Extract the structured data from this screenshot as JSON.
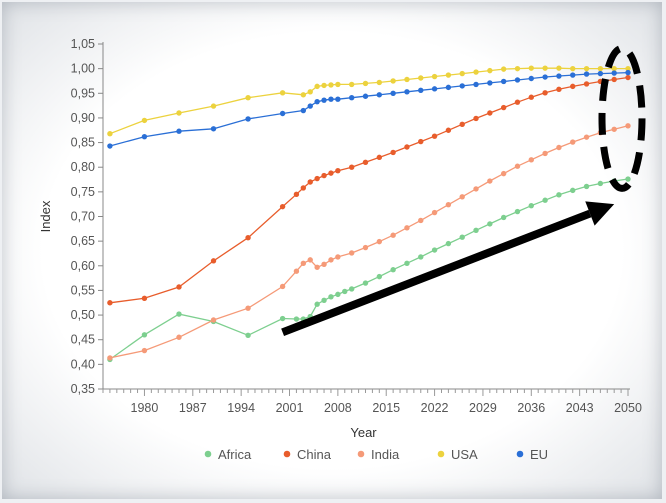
{
  "chart_data": {
    "type": "line",
    "xlabel": "Year",
    "ylabel": "Index",
    "xlim": [
      1974,
      2050
    ],
    "ylim": [
      0.35,
      1.05
    ],
    "xticks": [
      1980,
      1987,
      1994,
      2001,
      2008,
      2015,
      2022,
      2029,
      2036,
      2043,
      2050
    ],
    "yticks": [
      "0,35",
      "0,40",
      "0,45",
      "0,50",
      "0,55",
      "0,60",
      "0,65",
      "0,70",
      "0,75",
      "0,80",
      "0,85",
      "0,90",
      "0,95",
      "1,00",
      "1,05"
    ],
    "grid": false,
    "legend_position": "bottom",
    "series": [
      {
        "name": "Africa",
        "color": "#7dcf8f",
        "x": [
          1975,
          1980,
          1985,
          1990,
          1995,
          2000,
          2002,
          2003,
          2004,
          2005,
          2006,
          2007,
          2008,
          2009,
          2010,
          2012,
          2014,
          2016,
          2018,
          2020,
          2022,
          2024,
          2026,
          2028,
          2030,
          2032,
          2034,
          2036,
          2038,
          2040,
          2042,
          2044,
          2046,
          2048,
          2050
        ],
        "y": [
          0.41,
          0.46,
          0.502,
          0.487,
          0.459,
          0.493,
          0.492,
          0.492,
          0.497,
          0.522,
          0.53,
          0.537,
          0.542,
          0.548,
          0.553,
          0.565,
          0.578,
          0.592,
          0.605,
          0.618,
          0.632,
          0.645,
          0.658,
          0.672,
          0.685,
          0.698,
          0.71,
          0.722,
          0.733,
          0.744,
          0.753,
          0.761,
          0.767,
          0.772,
          0.776
        ]
      },
      {
        "name": "China",
        "color": "#e85d2c",
        "x": [
          1975,
          1980,
          1985,
          1990,
          1995,
          2000,
          2002,
          2003,
          2004,
          2005,
          2006,
          2007,
          2008,
          2010,
          2012,
          2014,
          2016,
          2018,
          2020,
          2022,
          2024,
          2026,
          2028,
          2030,
          2032,
          2034,
          2036,
          2038,
          2040,
          2042,
          2044,
          2046,
          2048,
          2050
        ],
        "y": [
          0.525,
          0.534,
          0.557,
          0.61,
          0.657,
          0.72,
          0.745,
          0.758,
          0.77,
          0.777,
          0.783,
          0.788,
          0.793,
          0.8,
          0.81,
          0.82,
          0.83,
          0.841,
          0.852,
          0.863,
          0.875,
          0.887,
          0.899,
          0.91,
          0.921,
          0.932,
          0.942,
          0.951,
          0.958,
          0.964,
          0.969,
          0.974,
          0.978,
          0.982
        ]
      },
      {
        "name": "India",
        "color": "#f59a78",
        "x": [
          1975,
          1980,
          1985,
          1990,
          1995,
          2000,
          2002,
          2003,
          2004,
          2005,
          2006,
          2007,
          2008,
          2010,
          2012,
          2014,
          2016,
          2018,
          2020,
          2022,
          2024,
          2026,
          2028,
          2030,
          2032,
          2034,
          2036,
          2038,
          2040,
          2042,
          2044,
          2046,
          2048,
          2050
        ],
        "y": [
          0.413,
          0.428,
          0.455,
          0.49,
          0.514,
          0.558,
          0.589,
          0.605,
          0.612,
          0.597,
          0.603,
          0.612,
          0.618,
          0.626,
          0.637,
          0.649,
          0.662,
          0.677,
          0.692,
          0.708,
          0.724,
          0.74,
          0.756,
          0.772,
          0.787,
          0.802,
          0.815,
          0.828,
          0.84,
          0.851,
          0.861,
          0.87,
          0.877,
          0.884
        ]
      },
      {
        "name": "USA",
        "color": "#ecd23e",
        "x": [
          1975,
          1980,
          1985,
          1990,
          1995,
          2000,
          2003,
          2004,
          2005,
          2006,
          2007,
          2008,
          2010,
          2012,
          2014,
          2016,
          2018,
          2020,
          2022,
          2024,
          2026,
          2028,
          2030,
          2032,
          2034,
          2036,
          2038,
          2040,
          2042,
          2044,
          2046,
          2048,
          2050
        ],
        "y": [
          0.868,
          0.895,
          0.91,
          0.924,
          0.941,
          0.951,
          0.947,
          0.953,
          0.964,
          0.966,
          0.967,
          0.968,
          0.968,
          0.97,
          0.972,
          0.975,
          0.978,
          0.981,
          0.984,
          0.987,
          0.99,
          0.993,
          0.996,
          0.999,
          1.0,
          1.001,
          1.001,
          1.001,
          1.0,
          1.0,
          1.0,
          1.0,
          1.0
        ]
      },
      {
        "name": "EU",
        "color": "#2a6fd6",
        "x": [
          1975,
          1980,
          1985,
          1990,
          1995,
          2000,
          2003,
          2004,
          2005,
          2006,
          2007,
          2008,
          2010,
          2012,
          2014,
          2016,
          2018,
          2020,
          2022,
          2024,
          2026,
          2028,
          2030,
          2032,
          2034,
          2036,
          2038,
          2040,
          2042,
          2044,
          2046,
          2048,
          2050
        ],
        "y": [
          0.843,
          0.862,
          0.873,
          0.878,
          0.898,
          0.909,
          0.915,
          0.924,
          0.933,
          0.936,
          0.938,
          0.938,
          0.941,
          0.944,
          0.947,
          0.95,
          0.953,
          0.956,
          0.959,
          0.962,
          0.965,
          0.968,
          0.971,
          0.974,
          0.977,
          0.98,
          0.983,
          0.985,
          0.987,
          0.989,
          0.99,
          0.991,
          0.992
        ]
      }
    ],
    "annotations": [
      {
        "type": "arrow",
        "from_data": [
          2000,
          0.465
        ],
        "to_data": [
          2048,
          0.725
        ],
        "color": "#000000"
      },
      {
        "type": "dashed-ellipse",
        "center_data": [
          2050,
          0.895
        ],
        "color": "#000000"
      }
    ]
  }
}
